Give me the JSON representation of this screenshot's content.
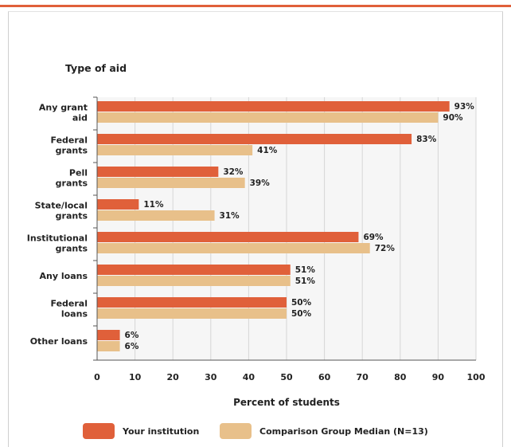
{
  "chart_data": {
    "type": "bar",
    "orientation": "horizontal",
    "title": "Type of aid",
    "xlabel": "Percent of students",
    "xlim": [
      0,
      100
    ],
    "xticks": [
      0,
      10,
      20,
      30,
      40,
      50,
      60,
      70,
      80,
      90,
      100
    ],
    "grid": true,
    "legend_position": "bottom",
    "categories": [
      [
        "Any grant",
        "aid"
      ],
      [
        "Federal",
        "grants"
      ],
      [
        "Pell",
        "grants"
      ],
      [
        "State/local",
        "grants"
      ],
      [
        "Institutional",
        "grants"
      ],
      [
        "Any loans"
      ],
      [
        "Federal",
        "loans"
      ],
      [
        "Other loans"
      ]
    ],
    "series": [
      {
        "name": "Your institution",
        "color": "#e0603a",
        "values": [
          93,
          83,
          32,
          11,
          69,
          51,
          50,
          6
        ],
        "labels": [
          "93%",
          "83%",
          "32%",
          "11%",
          "69%",
          "51%",
          "50%",
          "6%"
        ]
      },
      {
        "name": "Comparison Group Median (N=13)",
        "color": "#e8c08a",
        "values": [
          90,
          41,
          39,
          31,
          72,
          51,
          50,
          6
        ],
        "labels": [
          "90%",
          "41%",
          "39%",
          "31%",
          "72%",
          "51%",
          "50%",
          "6%"
        ]
      }
    ]
  }
}
